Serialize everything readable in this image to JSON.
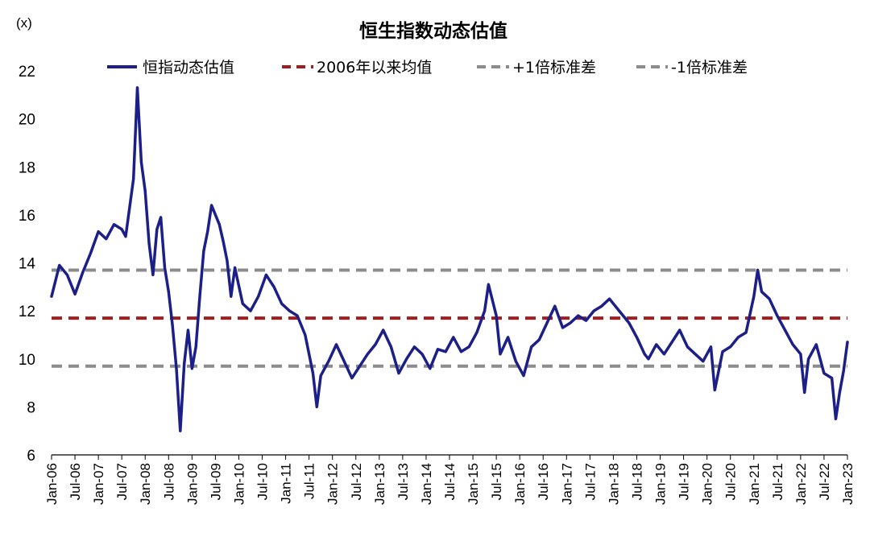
{
  "chart_data": {
    "type": "line",
    "title": "恒生指数动态估值",
    "unit_label": "(x)",
    "ylim": [
      6,
      22
    ],
    "yticks": [
      6,
      8,
      10,
      12,
      14,
      16,
      18,
      20,
      22
    ],
    "xlim": [
      "2006-01",
      "2023-01"
    ],
    "xtick_labels": [
      "Jan-06",
      "Jul-06",
      "Jan-07",
      "Jul-07",
      "Jan-08",
      "Jul-08",
      "Jan-09",
      "Jul-09",
      "Jan-10",
      "Jul-10",
      "Jan-11",
      "Jul-11",
      "Jan-12",
      "Jul-12",
      "Jan-13",
      "Jul-13",
      "Jan-14",
      "Jul-14",
      "Jan-15",
      "Jul-15",
      "Jan-16",
      "Jul-16",
      "Jan-17",
      "Jul-17",
      "Jan-18",
      "Jul-18",
      "Jan-19",
      "Jul-19",
      "Jan-20",
      "Jul-20",
      "Jan-21",
      "Jul-21",
      "Jan-22",
      "Jul-22",
      "Jan-23"
    ],
    "grid": false,
    "legend_position": "top",
    "series": [
      {
        "name": "恒指动态估值",
        "color": "#1c1f87",
        "style": "solid",
        "x": [
          "2006-01",
          "2006-03",
          "2006-05",
          "2006-07",
          "2006-09",
          "2006-11",
          "2007-01",
          "2007-03",
          "2007-05",
          "2007-07",
          "2007-08",
          "2007-10",
          "2007-11",
          "2007-12",
          "2008-01",
          "2008-02",
          "2008-03",
          "2008-04",
          "2008-05",
          "2008-06",
          "2008-07",
          "2008-08",
          "2008-09",
          "2008-10",
          "2008-11",
          "2008-12",
          "2009-01",
          "2009-02",
          "2009-03",
          "2009-04",
          "2009-05",
          "2009-06",
          "2009-08",
          "2009-09",
          "2009-10",
          "2009-11",
          "2009-12",
          "2010-02",
          "2010-04",
          "2010-06",
          "2010-08",
          "2010-10",
          "2010-12",
          "2011-02",
          "2011-04",
          "2011-06",
          "2011-08",
          "2011-09",
          "2011-10",
          "2011-12",
          "2012-02",
          "2012-04",
          "2012-06",
          "2012-08",
          "2012-10",
          "2012-12",
          "2013-02",
          "2013-04",
          "2013-06",
          "2013-08",
          "2013-10",
          "2013-12",
          "2014-02",
          "2014-04",
          "2014-06",
          "2014-08",
          "2014-10",
          "2014-12",
          "2015-02",
          "2015-04",
          "2015-05",
          "2015-07",
          "2015-08",
          "2015-10",
          "2015-12",
          "2016-02",
          "2016-04",
          "2016-06",
          "2016-08",
          "2016-10",
          "2016-12",
          "2017-02",
          "2017-04",
          "2017-06",
          "2017-08",
          "2017-10",
          "2017-12",
          "2018-01",
          "2018-03",
          "2018-05",
          "2018-07",
          "2018-09",
          "2018-10",
          "2018-12",
          "2019-02",
          "2019-04",
          "2019-06",
          "2019-08",
          "2019-10",
          "2019-12",
          "2020-02",
          "2020-03",
          "2020-05",
          "2020-07",
          "2020-09",
          "2020-11",
          "2021-01",
          "2021-02",
          "2021-03",
          "2021-05",
          "2021-07",
          "2021-09",
          "2021-11",
          "2022-01",
          "2022-02",
          "2022-03",
          "2022-05",
          "2022-07",
          "2022-09",
          "2022-10",
          "2022-11",
          "2022-12",
          "2023-01"
        ],
        "values": [
          12.6,
          13.9,
          13.5,
          12.7,
          13.6,
          14.4,
          15.3,
          15.0,
          15.6,
          15.4,
          15.1,
          17.5,
          21.3,
          18.2,
          17.0,
          14.8,
          13.5,
          15.4,
          15.9,
          13.8,
          12.8,
          11.4,
          9.6,
          7.0,
          9.8,
          11.2,
          9.6,
          10.5,
          12.6,
          14.5,
          15.3,
          16.4,
          15.6,
          14.9,
          14.1,
          12.6,
          13.8,
          12.3,
          12.0,
          12.6,
          13.5,
          13.0,
          12.3,
          12.0,
          11.8,
          11.0,
          9.4,
          8.0,
          9.3,
          9.9,
          10.6,
          9.9,
          9.2,
          9.7,
          10.2,
          10.6,
          11.2,
          10.5,
          9.4,
          10.0,
          10.5,
          10.2,
          9.6,
          10.4,
          10.3,
          10.9,
          10.3,
          10.5,
          11.1,
          12.0,
          13.1,
          11.8,
          10.2,
          10.9,
          9.9,
          9.3,
          10.5,
          10.8,
          11.5,
          12.2,
          11.3,
          11.5,
          11.8,
          11.6,
          12.0,
          12.2,
          12.5,
          12.3,
          11.9,
          11.5,
          10.9,
          10.2,
          10.0,
          10.6,
          10.2,
          10.7,
          11.2,
          10.5,
          10.2,
          9.9,
          10.5,
          8.7,
          10.3,
          10.5,
          10.9,
          11.1,
          12.6,
          13.7,
          12.8,
          12.5,
          11.8,
          11.2,
          10.6,
          10.2,
          8.6,
          10.0,
          10.6,
          9.4,
          9.2,
          7.5,
          8.6,
          9.5,
          10.7
        ]
      },
      {
        "name": "2006年以来均值",
        "color": "#a31d1d",
        "style": "dashed",
        "value": 11.7
      },
      {
        "name": "+1倍标准差",
        "color": "#8c8c8c",
        "style": "dashed",
        "value": 13.7
      },
      {
        "name": "-1倍标准差",
        "color": "#8c8c8c",
        "style": "dashed",
        "value": 9.7
      }
    ]
  }
}
